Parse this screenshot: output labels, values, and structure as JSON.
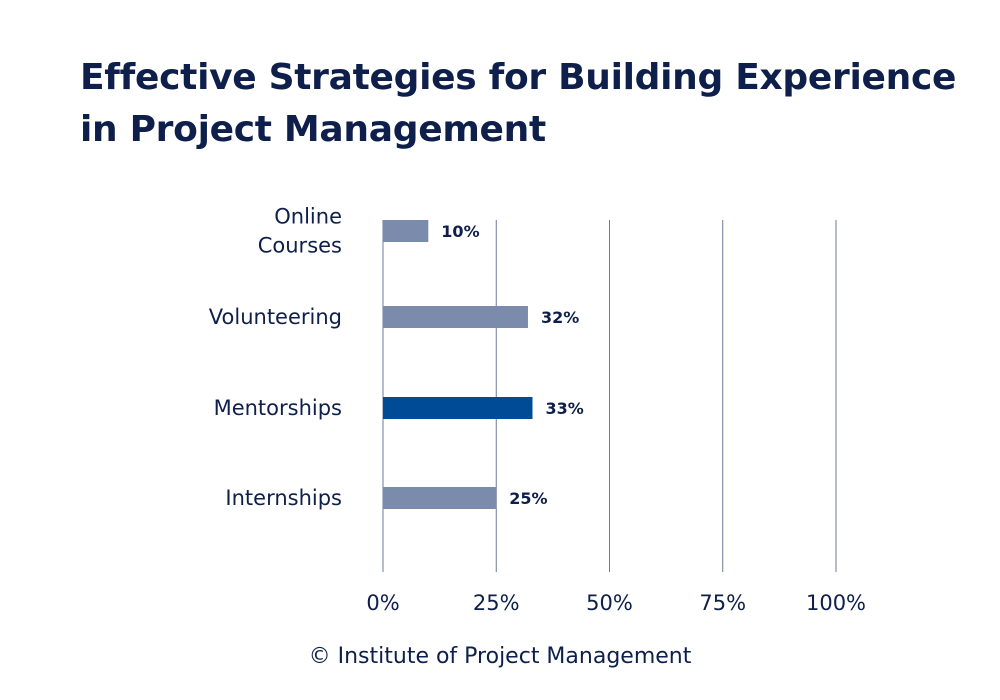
{
  "chart_data": {
    "type": "bar",
    "orientation": "horizontal",
    "title_lines": [
      "Effective Strategies for Building Experience",
      "in Project Management"
    ],
    "categories": [
      [
        "Online",
        "Courses"
      ],
      [
        "Volunteering"
      ],
      [
        "Mentorships"
      ],
      [
        "Internships"
      ]
    ],
    "values": [
      10,
      32,
      33,
      25
    ],
    "value_labels": [
      "10%",
      "32%",
      "33%",
      "25%"
    ],
    "highlight_index": 2,
    "xlim": [
      0,
      100
    ],
    "x_ticks": [
      0,
      25,
      50,
      75,
      100
    ],
    "x_tick_labels": [
      "0%",
      "25%",
      "50%",
      "75%",
      "100%"
    ],
    "grid": "vertical",
    "colors": {
      "bar": "#7a8bab",
      "highlight": "#004b96",
      "grid": "#6b7a99",
      "text": "#0d1f4a"
    }
  },
  "footer": {
    "source": "© Institute of Project Management"
  }
}
